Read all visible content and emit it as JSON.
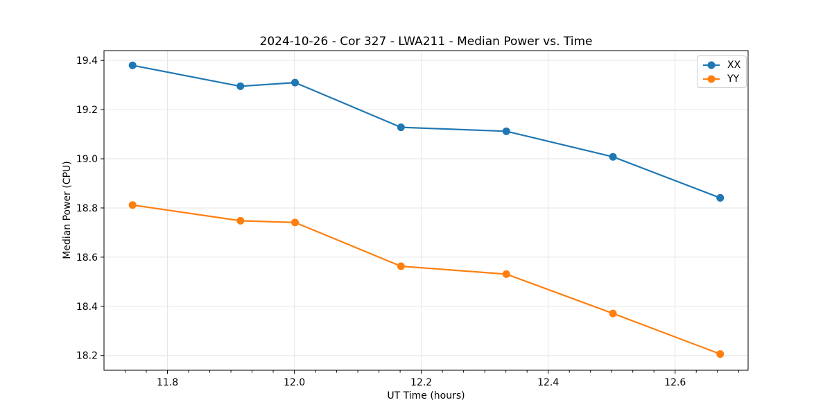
{
  "figure": {
    "title": "2024-10-26 - Cor 327 - LWA211 - Median Power vs. Time"
  },
  "chart_data": {
    "type": "line",
    "title": "2024-10-26 - Cor 327 - LWA211 - Median Power vs. Time",
    "xlabel": "UT Time (hours)",
    "ylabel": "Median Power (CPU)",
    "x": [
      11.745,
      11.915,
      12.001,
      12.168,
      12.334,
      12.502,
      12.671
    ],
    "series": [
      {
        "name": "XX",
        "color": "#1f77b4",
        "values": [
          19.38,
          19.295,
          19.31,
          19.128,
          19.112,
          19.008,
          18.841
        ]
      },
      {
        "name": "YY",
        "color": "#ff7f0e",
        "values": [
          18.812,
          18.748,
          18.741,
          18.563,
          18.531,
          18.371,
          18.206
        ]
      }
    ],
    "xlim": [
      11.7,
      12.715
    ],
    "ylim": [
      18.14,
      19.44
    ],
    "xticks": [
      11.8,
      12.0,
      12.2,
      12.4,
      12.6
    ],
    "yticks": [
      18.2,
      18.4,
      18.6,
      18.8,
      19.0,
      19.2,
      19.4
    ],
    "x_minor_step": 0.0333333,
    "grid": true,
    "grid_color": "#e6e6e6",
    "legend_position": "upper right",
    "marker": "o",
    "tick_label_decimals": 1
  }
}
